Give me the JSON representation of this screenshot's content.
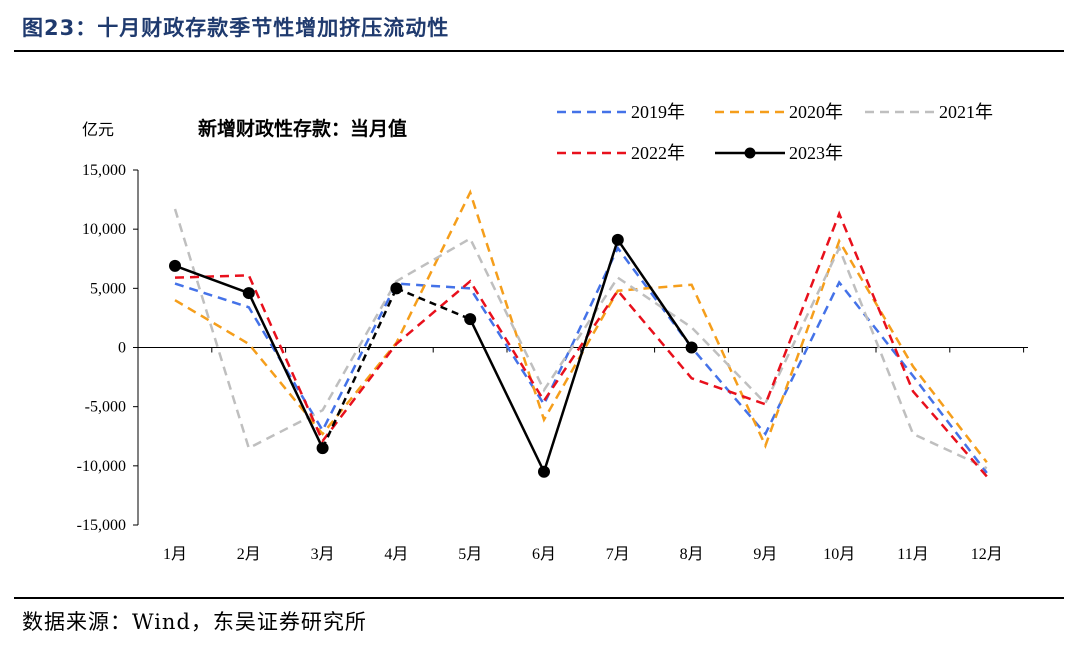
{
  "figure": {
    "title": "图23：十月财政存款季节性增加挤压流动性",
    "source": "数据来源：Wind，东吴证券研究所"
  },
  "chart_data": {
    "type": "line",
    "title": "新增财政性存款：当月值",
    "ylabel": "亿元",
    "xlabel": "",
    "categories": [
      "1月",
      "2月",
      "3月",
      "4月",
      "5月",
      "6月",
      "7月",
      "8月",
      "9月",
      "10月",
      "11月",
      "12月"
    ],
    "ylim": [
      -15000,
      15000
    ],
    "yticks": [
      15000,
      10000,
      5000,
      0,
      -5000,
      -10000,
      -15000
    ],
    "ytick_labels": [
      "15,000",
      "10,000",
      "5,000",
      "0",
      "-5,000",
      "-10,000",
      "-15,000"
    ],
    "grid": false,
    "legend_position": "top-right",
    "series": [
      {
        "name": "2019年",
        "color": "#4472e8",
        "style": "dashed",
        "values": [
          5400,
          3400,
          -7000,
          5400,
          5000,
          -4800,
          8400,
          0,
          -7300,
          5500,
          -2400,
          -10600
        ]
      },
      {
        "name": "2020年",
        "color": "#f59e1b",
        "style": "dashed",
        "values": [
          4000,
          300,
          -7300,
          400,
          13100,
          -6100,
          4800,
          5300,
          -8300,
          9000,
          -1600,
          -9700
        ]
      },
      {
        "name": "2021年",
        "color": "#bfbfbf",
        "style": "dashed",
        "values": [
          11700,
          -8500,
          -5300,
          5600,
          9200,
          -3600,
          5900,
          1700,
          -4700,
          8400,
          -7300,
          -10200
        ]
      },
      {
        "name": "2022年",
        "color": "#e8101c",
        "style": "dashed",
        "values": [
          5900,
          6100,
          -7900,
          300,
          5600,
          -4500,
          4800,
          -2600,
          -4800,
          11300,
          -3700,
          -10900
        ]
      },
      {
        "name": "2023年",
        "color": "#000000",
        "style": "solid-marker",
        "values": [
          6900,
          4600,
          -8500,
          5000,
          2400,
          -10500,
          9100,
          0,
          null,
          null,
          null,
          null
        ]
      }
    ]
  }
}
